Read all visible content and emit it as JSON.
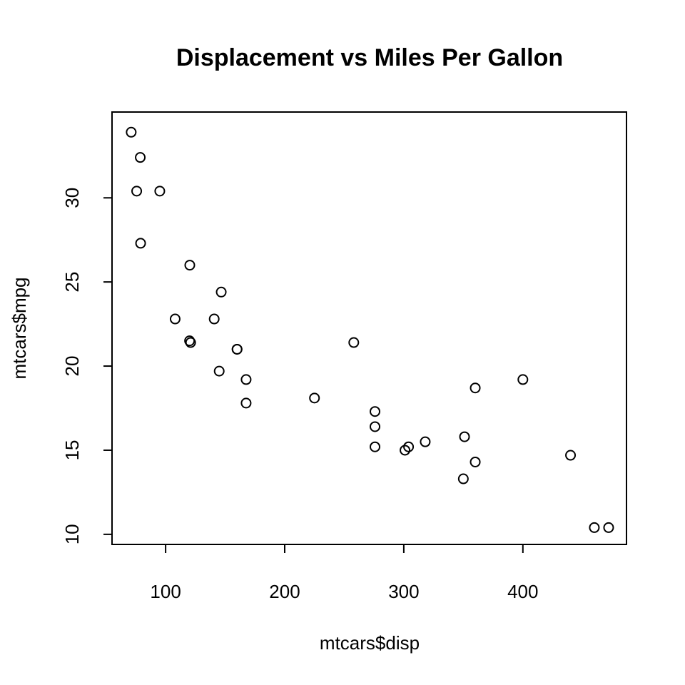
{
  "chart_data": {
    "type": "scatter",
    "title": "Displacement vs Miles Per Gallon",
    "xlabel": "mtcars$disp",
    "ylabel": "mtcars$mpg",
    "xlim": [
      55,
      487
    ],
    "ylim": [
      9.4,
      35.1
    ],
    "xticks": [
      100,
      200,
      300,
      400
    ],
    "yticks": [
      10,
      15,
      20,
      25,
      30
    ],
    "grid": false,
    "marker": "open-circle",
    "points": [
      {
        "x": 160,
        "y": 21.0
      },
      {
        "x": 160,
        "y": 21.0
      },
      {
        "x": 108,
        "y": 22.8
      },
      {
        "x": 258,
        "y": 21.4
      },
      {
        "x": 360,
        "y": 18.7
      },
      {
        "x": 225,
        "y": 18.1
      },
      {
        "x": 360,
        "y": 14.3
      },
      {
        "x": 146.7,
        "y": 24.4
      },
      {
        "x": 140.8,
        "y": 22.8
      },
      {
        "x": 167.6,
        "y": 19.2
      },
      {
        "x": 167.6,
        "y": 17.8
      },
      {
        "x": 275.8,
        "y": 16.4
      },
      {
        "x": 275.8,
        "y": 17.3
      },
      {
        "x": 275.8,
        "y": 15.2
      },
      {
        "x": 472,
        "y": 10.4
      },
      {
        "x": 460,
        "y": 10.4
      },
      {
        "x": 440,
        "y": 14.7
      },
      {
        "x": 78.7,
        "y": 32.4
      },
      {
        "x": 75.7,
        "y": 30.4
      },
      {
        "x": 71.1,
        "y": 33.9
      },
      {
        "x": 120.1,
        "y": 21.5
      },
      {
        "x": 318,
        "y": 15.5
      },
      {
        "x": 304,
        "y": 15.2
      },
      {
        "x": 350,
        "y": 13.3
      },
      {
        "x": 400,
        "y": 19.2
      },
      {
        "x": 79,
        "y": 27.3
      },
      {
        "x": 120.3,
        "y": 26.0
      },
      {
        "x": 95.1,
        "y": 30.4
      },
      {
        "x": 351,
        "y": 15.8
      },
      {
        "x": 145,
        "y": 19.7
      },
      {
        "x": 301,
        "y": 15.0
      },
      {
        "x": 121,
        "y": 21.4
      }
    ]
  }
}
